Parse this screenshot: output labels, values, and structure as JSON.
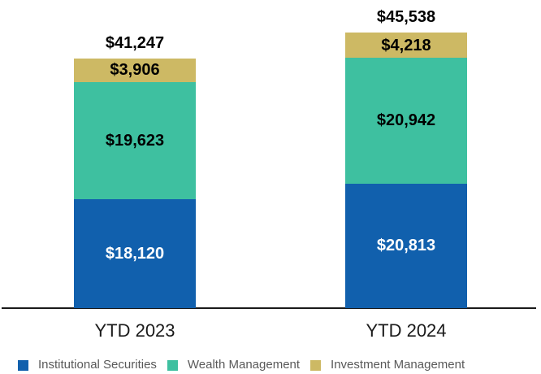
{
  "chart_data": {
    "type": "bar",
    "stacked": true,
    "title": "",
    "categories": [
      "YTD 2023",
      "YTD 2024"
    ],
    "series": [
      {
        "name": "Institutional Securities",
        "color": "#1160ad",
        "label_color": "#ffffff",
        "values": [
          18120,
          20813
        ],
        "data_labels": [
          "$18,120",
          "$20,813"
        ]
      },
      {
        "name": "Wealth Management",
        "color": "#3ec0a0",
        "label_color": "#000000",
        "values": [
          19623,
          20942
        ],
        "data_labels": [
          "$19,623",
          "$20,942"
        ]
      },
      {
        "name": "Investment Management",
        "color": "#cdb964",
        "label_color": "#000000",
        "values": [
          3906,
          4218
        ],
        "data_labels": [
          "$3,906",
          "$4,218"
        ]
      }
    ],
    "totals": [
      41247,
      45538
    ],
    "total_labels": [
      "$41,247",
      "$45,538"
    ],
    "legend_entries": [
      "Institutional Securities",
      "Wealth Management",
      "Investment Management"
    ],
    "legend_position": "bottom",
    "grid": false,
    "value_axis_visible": false
  },
  "colors": {
    "background": "#ffffff",
    "axis_line": "#1a1a1a",
    "total_label_text": "#000000",
    "category_label_text": "#1a1a1a",
    "legend_text": "#595959"
  }
}
